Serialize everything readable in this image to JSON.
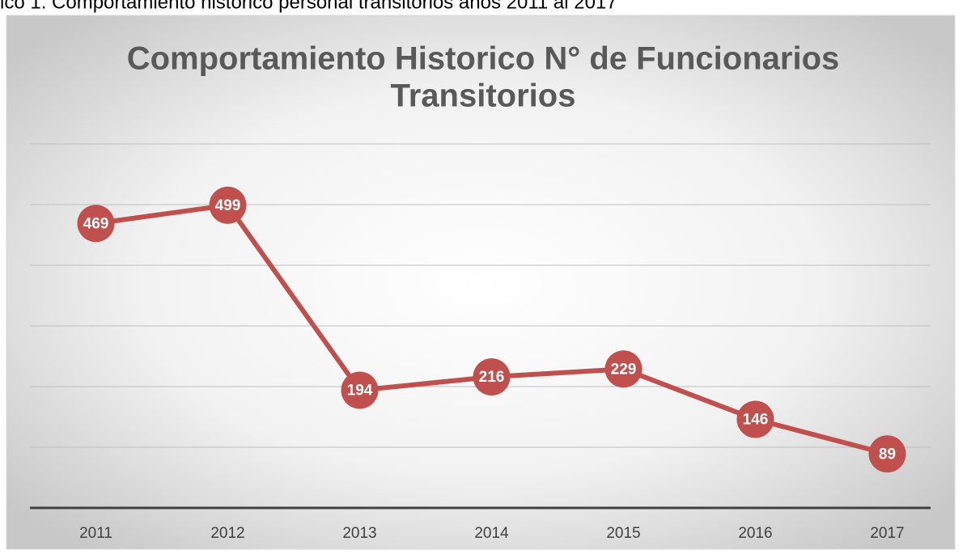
{
  "caption": "ico 1. Comportamiento histórico personal transitorios años 2011 al 2017",
  "chart_data": {
    "type": "line",
    "title": "Comportamiento Historico N° de Funcionarios Transitorios",
    "title_lines": [
      "Comportamiento Historico N° de Funcionarios",
      "Transitorios"
    ],
    "categories": [
      "2011",
      "2012",
      "2013",
      "2014",
      "2015",
      "2016",
      "2017"
    ],
    "series": [
      {
        "name": "Transitorios",
        "color": "#c0504d",
        "values": [
          469,
          499,
          194,
          216,
          229,
          146,
          89
        ]
      }
    ],
    "ylim": [
      0,
      600
    ],
    "yticks": [
      0,
      100,
      200,
      300,
      400,
      500,
      600
    ],
    "grid": true
  }
}
